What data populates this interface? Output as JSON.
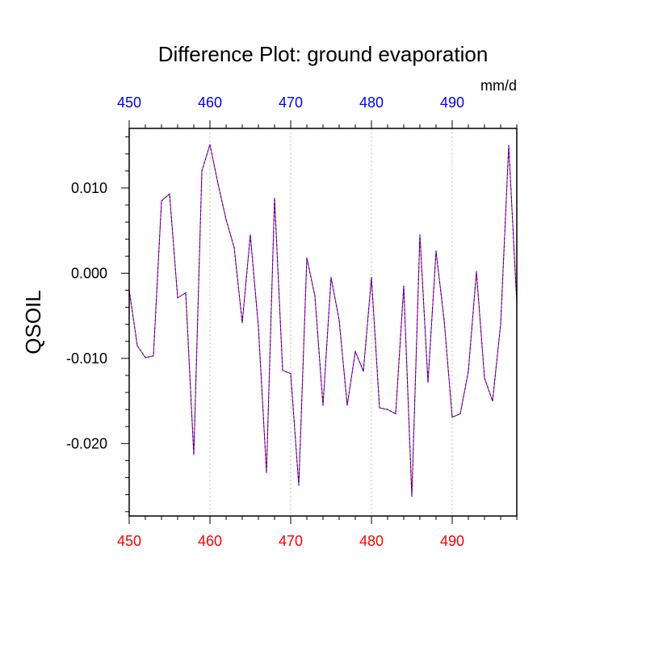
{
  "chart_data": {
    "type": "line",
    "title": "Difference Plot: ground evaporation",
    "ylabel": "QSOIL",
    "units": "mm/d",
    "xlim": [
      450,
      498
    ],
    "ylim": [
      -0.0285,
      0.017
    ],
    "x_ticks": [
      450,
      460,
      470,
      480,
      490
    ],
    "x_tick_labels": [
      "450",
      "460",
      "470",
      "480",
      "490"
    ],
    "y_ticks": [
      0.01,
      0.0,
      -0.01,
      -0.02
    ],
    "y_tick_labels": [
      "0.010",
      "0.000",
      "-0.010",
      "-0.020"
    ],
    "grid": "vertical dotted at major x ticks",
    "colors": {
      "top_axis_labels": "#0000ff",
      "bottom_axis_labels": "#ff0000",
      "series_a": "#ff0000",
      "series_b": "#0000ff"
    },
    "x": [
      450,
      451,
      452,
      453,
      454,
      455,
      456,
      457,
      458,
      459,
      460,
      461,
      462,
      463,
      464,
      465,
      466,
      467,
      468,
      469,
      470,
      471,
      472,
      473,
      474,
      475,
      476,
      477,
      478,
      479,
      480,
      481,
      482,
      483,
      484,
      485,
      486,
      487,
      488,
      489,
      490,
      491,
      492,
      493,
      494,
      495,
      496,
      497,
      498
    ],
    "series": [
      {
        "values": [
          -0.002,
          -0.0085,
          -0.0099,
          -0.0097,
          0.0085,
          0.0093,
          -0.0029,
          -0.0023,
          -0.0213,
          0.012,
          0.0151,
          0.0105,
          0.0063,
          0.003,
          -0.0058,
          0.0045,
          -0.0063,
          -0.0234,
          0.0088,
          -0.0114,
          -0.0118,
          -0.0249,
          0.0018,
          -0.0027,
          -0.0155,
          -0.0005,
          -0.0055,
          -0.0155,
          -0.0092,
          -0.0115,
          -0.0005,
          -0.0158,
          -0.016,
          -0.0165,
          -0.0015,
          -0.0262,
          0.0045,
          -0.0128,
          0.0026,
          -0.0055,
          -0.0169,
          -0.0165,
          -0.0115,
          0.0002,
          -0.0123,
          -0.015,
          -0.006,
          0.015,
          -0.0035
        ]
      }
    ]
  }
}
